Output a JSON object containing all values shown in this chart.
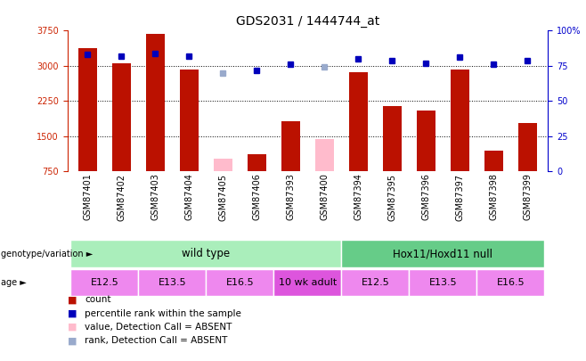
{
  "title": "GDS2031 / 1444744_at",
  "samples": [
    "GSM87401",
    "GSM87402",
    "GSM87403",
    "GSM87404",
    "GSM87405",
    "GSM87406",
    "GSM87393",
    "GSM87400",
    "GSM87394",
    "GSM87395",
    "GSM87396",
    "GSM87397",
    "GSM87398",
    "GSM87399"
  ],
  "counts": [
    3370,
    3050,
    3680,
    2920,
    null,
    1120,
    1820,
    null,
    2870,
    2150,
    2050,
    2920,
    1200,
    1790
  ],
  "absent_counts": [
    null,
    null,
    null,
    null,
    1020,
    null,
    null,
    1450,
    null,
    null,
    null,
    null,
    null,
    null
  ],
  "percentile_ranks": [
    83,
    82,
    84,
    82,
    null,
    72,
    76,
    null,
    80,
    79,
    77,
    81,
    76,
    79
  ],
  "absent_ranks": [
    null,
    null,
    null,
    null,
    70,
    null,
    null,
    74,
    null,
    null,
    null,
    null,
    null,
    null
  ],
  "ylim_left": [
    750,
    3750
  ],
  "ylim_right": [
    0,
    100
  ],
  "yticks_left": [
    750,
    1500,
    2250,
    3000,
    3750
  ],
  "yticks_right": [
    0,
    25,
    50,
    75,
    100
  ],
  "bar_color": "#bb1100",
  "absent_bar_color": "#ffbbcc",
  "dot_color": "#0000bb",
  "absent_dot_color": "#99aacc",
  "grid_color": "#000000",
  "plot_bg_color": "#ffffff",
  "fig_bg_color": "#ffffff",
  "xtick_bg_color": "#cccccc",
  "genotype_groups": [
    {
      "label": "wild type",
      "start": 0,
      "end": 8,
      "color": "#aaeebb"
    },
    {
      "label": "Hox11/Hoxd11 null",
      "start": 8,
      "end": 14,
      "color": "#66cc88"
    }
  ],
  "age_groups": [
    {
      "label": "E12.5",
      "start": 0,
      "end": 2,
      "color": "#ee88ee"
    },
    {
      "label": "E13.5",
      "start": 2,
      "end": 4,
      "color": "#ee88ee"
    },
    {
      "label": "E16.5",
      "start": 4,
      "end": 6,
      "color": "#ee88ee"
    },
    {
      "label": "10 wk adult",
      "start": 6,
      "end": 8,
      "color": "#dd55dd"
    },
    {
      "label": "E12.5",
      "start": 8,
      "end": 10,
      "color": "#ee88ee"
    },
    {
      "label": "E13.5",
      "start": 10,
      "end": 12,
      "color": "#ee88ee"
    },
    {
      "label": "E16.5",
      "start": 12,
      "end": 14,
      "color": "#ee88ee"
    }
  ],
  "left_label_color": "#cc2200",
  "right_label_color": "#0000cc",
  "tick_fontsize": 7,
  "bar_fontsize": 7,
  "genotype_label": "genotype/variation",
  "age_label": "age",
  "legend_items": [
    {
      "color": "#bb1100",
      "label": "count"
    },
    {
      "color": "#0000bb",
      "label": "percentile rank within the sample"
    },
    {
      "color": "#ffbbcc",
      "label": "value, Detection Call = ABSENT"
    },
    {
      "color": "#99aacc",
      "label": "rank, Detection Call = ABSENT"
    }
  ]
}
